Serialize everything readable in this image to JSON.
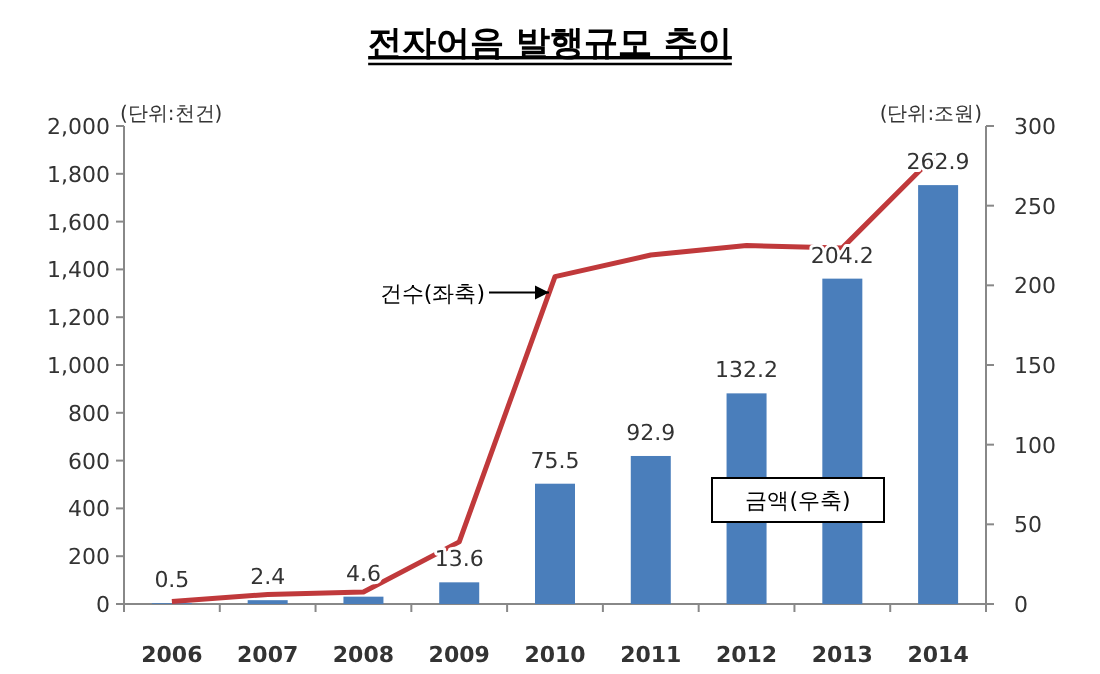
{
  "chart_data": {
    "type": "bar",
    "title": "전자어음 발행규모 추이",
    "ylabel": "(단위:천건)",
    "y2label": "(단위:조원)",
    "categories": [
      "2006",
      "2007",
      "2008",
      "2009",
      "2010",
      "2011",
      "2012",
      "2013",
      "2014"
    ],
    "series": [
      {
        "axis": "y2",
        "color": "#4a7ebb",
        "values": [
          0.5,
          2.4,
          4.6,
          13.6,
          75.5,
          92.9,
          132.2,
          204.2,
          262.9
        ],
        "value_labels": [
          "0.5",
          "2.4",
          "4.6",
          "13.6",
          "75.5",
          "92.9",
          "132.2",
          "204.2",
          "262.9"
        ]
      },
      {
        "type": "line",
        "axis": "y",
        "color": "#c0393b",
        "values": [
          10,
          40,
          50,
          260,
          1370,
          1460,
          1500,
          1490,
          1890
        ]
      }
    ],
    "ylim": [
      0,
      2000
    ],
    "yticks": [
      {
        "value": 0,
        "label": "0"
      },
      {
        "value": 200,
        "label": "200"
      },
      {
        "value": 400,
        "label": "400"
      },
      {
        "value": 600,
        "label": "600"
      },
      {
        "value": 800,
        "label": "800"
      },
      {
        "value": 1000,
        "label": "1,000"
      },
      {
        "value": 1200,
        "label": "1,200"
      },
      {
        "value": 1400,
        "label": "1,400"
      },
      {
        "value": 1600,
        "label": "1,600"
      },
      {
        "value": 1800,
        "label": "1,800"
      },
      {
        "value": 2000,
        "label": "2,000"
      }
    ],
    "y2lim": [
      0,
      300
    ],
    "y2ticks": [
      0,
      50,
      100,
      150,
      200,
      250,
      300
    ],
    "annotations": [
      {
        "text": "건수(좌축)",
        "x": "2010",
        "y": 1370
      },
      "금액(우축)"
    ],
    "grid": false
  }
}
